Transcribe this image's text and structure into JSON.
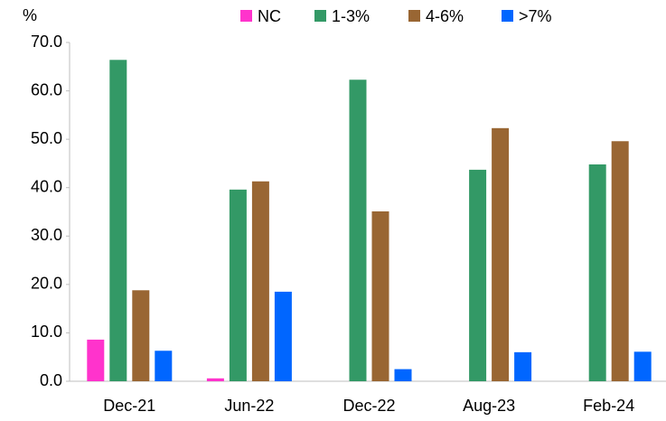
{
  "chart_data": {
    "type": "bar",
    "y_label": "%",
    "categories": [
      "Dec-21",
      "Jun-22",
      "Dec-22",
      "Aug-23",
      "Feb-24"
    ],
    "series": [
      {
        "name": "NC",
        "color": "#ff33cc",
        "values": [
          8.6,
          0.6,
          null,
          null,
          null
        ]
      },
      {
        "name": "1-3%",
        "color": "#339966",
        "values": [
          66.4,
          39.6,
          62.3,
          43.7,
          44.8
        ]
      },
      {
        "name": "4-6%",
        "color": "#996633",
        "values": [
          18.8,
          41.3,
          35.1,
          52.3,
          49.6
        ]
      },
      {
        "name": ">7%",
        "color": "#0066ff",
        "values": [
          6.3,
          18.5,
          2.5,
          6.0,
          6.1
        ]
      }
    ],
    "ylim": [
      0,
      70
    ],
    "yticks": [
      {
        "value": 0,
        "label": "0.0"
      },
      {
        "value": 10,
        "label": "10.0"
      },
      {
        "value": 20,
        "label": "20.0"
      },
      {
        "value": 30,
        "label": "30.0"
      },
      {
        "value": 40,
        "label": "40.0"
      },
      {
        "value": 50,
        "label": "50.0"
      },
      {
        "value": 60,
        "label": "60.0"
      },
      {
        "value": 70,
        "label": "70.0"
      }
    ],
    "grid": false,
    "legend": "top"
  }
}
